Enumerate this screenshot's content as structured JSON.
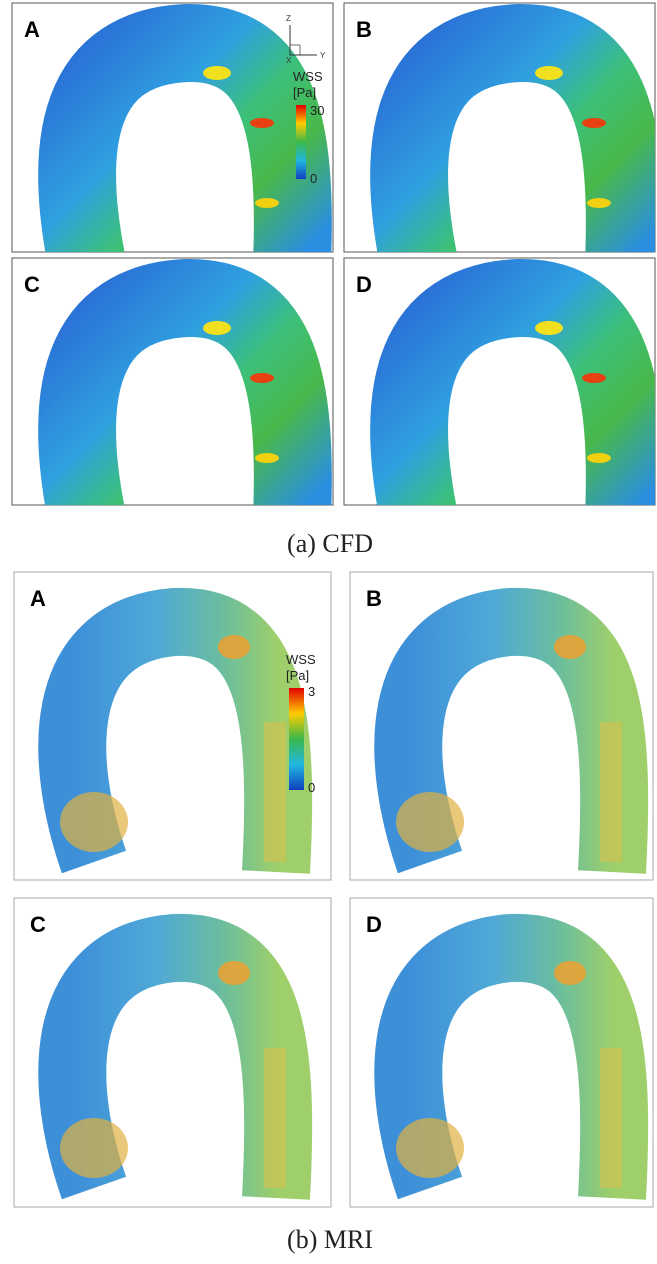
{
  "figure": {
    "cfd": {
      "caption": "(a) CFD",
      "panels": [
        "A",
        "B",
        "C",
        "D"
      ],
      "colorbar": {
        "title": "WSS",
        "unit": "[Pa]",
        "max": 30,
        "min": 0
      },
      "axes": {
        "z": "Z",
        "x": "X",
        "y": "Y"
      }
    },
    "mri": {
      "caption": "(b) MRI",
      "panels": [
        "A",
        "B",
        "C",
        "D"
      ],
      "colorbar": {
        "title": "WSS",
        "unit": "[Pa]",
        "max": 3,
        "min": 0
      }
    }
  }
}
